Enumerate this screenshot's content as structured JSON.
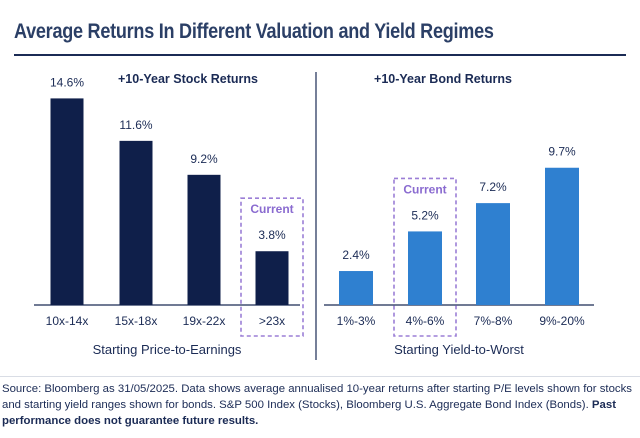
{
  "title": "Average Returns In Different Valuation and Yield Regimes",
  "colors": {
    "title": "#2b3f66",
    "stock_bar": "#0f1f4a",
    "bond_bar": "#2f80d0",
    "current_box": "#9b7ed6",
    "current_label": "#8a6bd0",
    "text": "#1b2b55",
    "axis": "#1b2b55"
  },
  "current_label": "Current",
  "source": {
    "text": "Source: Bloomberg as 31/05/2025. Data shows average annualised 10-year returns after starting P/E levels shown for stocks and starting yield ranges shown for bonds. S&P 500 Index (Stocks), Bloomberg U.S. Aggregate Bond Index (Bonds).",
    "bold": "Past performance does not guarantee future results."
  },
  "chart_data": [
    {
      "type": "bar",
      "title": "+10-Year Stock Returns",
      "xlabel": "Starting Price-to-Earnings",
      "categories": [
        "10x-14x",
        "15x-18x",
        "19x-22x",
        ">23x"
      ],
      "values": [
        14.6,
        11.6,
        9.2,
        3.8
      ],
      "value_labels": [
        "14.6%",
        "11.6%",
        "9.2%",
        "3.8%"
      ],
      "current_index": 3,
      "ylim": [
        0,
        16
      ],
      "grid": false
    },
    {
      "type": "bar",
      "title": "+10-Year Bond Returns",
      "xlabel": "Starting Yield-to-Worst",
      "categories": [
        "1%-3%",
        "4%-6%",
        "7%-8%",
        "9%-20%"
      ],
      "values": [
        2.4,
        5.2,
        7.2,
        9.7
      ],
      "value_labels": [
        "2.4%",
        "5.2%",
        "7.2%",
        "9.7%"
      ],
      "current_index": 1,
      "ylim": [
        0,
        16
      ],
      "grid": false
    }
  ]
}
